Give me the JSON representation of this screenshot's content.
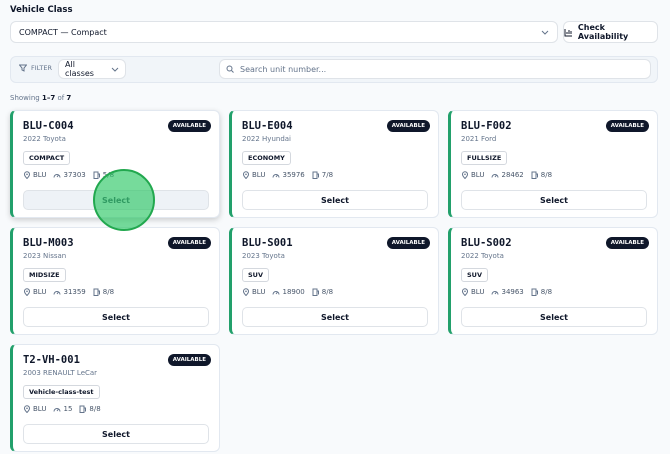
{
  "label": "Vehicle Class",
  "class_select": "COMPACT — Compact",
  "check_button": "Check Availability",
  "filter_label": "FILTER",
  "filter_select": "All classes",
  "search_placeholder": "Search unit number...",
  "showing": {
    "prefix": "Showing",
    "range": "1–7",
    "of": "of",
    "total": 7
  },
  "cards": [
    {
      "unit": "BLU-C004",
      "vehicle": "2022 Toyota",
      "class": "COMPACT",
      "location": "BLU",
      "mileage": 37303,
      "fuel": "5/8",
      "status": "AVAILABLE",
      "button": "Select"
    },
    {
      "unit": "BLU-E004",
      "vehicle": "2022 Hyundai",
      "class": "ECONOMY",
      "location": "BLU",
      "mileage": 35976,
      "fuel": "7/8",
      "status": "AVAILABLE",
      "button": "Select"
    },
    {
      "unit": "BLU-F002",
      "vehicle": "2021 Ford",
      "class": "FULLSIZE",
      "location": "BLU",
      "mileage": 28462,
      "fuel": "8/8",
      "status": "AVAILABLE",
      "button": "Select"
    },
    {
      "unit": "BLU-M003",
      "vehicle": "2023 Nissan",
      "class": "MIDSIZE",
      "location": "BLU",
      "mileage": 31359,
      "fuel": "8/8",
      "status": "AVAILABLE",
      "button": "Select"
    },
    {
      "unit": "BLU-S001",
      "vehicle": "2023 Toyota",
      "class": "SUV",
      "location": "BLU",
      "mileage": 18900,
      "fuel": "8/8",
      "status": "AVAILABLE",
      "button": "Select"
    },
    {
      "unit": "BLU-S002",
      "vehicle": "2022 Toyota",
      "class": "SUV",
      "location": "BLU",
      "mileage": 34963,
      "fuel": "8/8",
      "status": "AVAILABLE",
      "button": "Select"
    },
    {
      "unit": "T2-VH-001",
      "vehicle": "2003 RENAULT LeCar",
      "class": "Vehicle-class-test",
      "location": "BLU",
      "mileage": 15,
      "fuel": "8/8",
      "status": "AVAILABLE",
      "button": "Select"
    }
  ]
}
